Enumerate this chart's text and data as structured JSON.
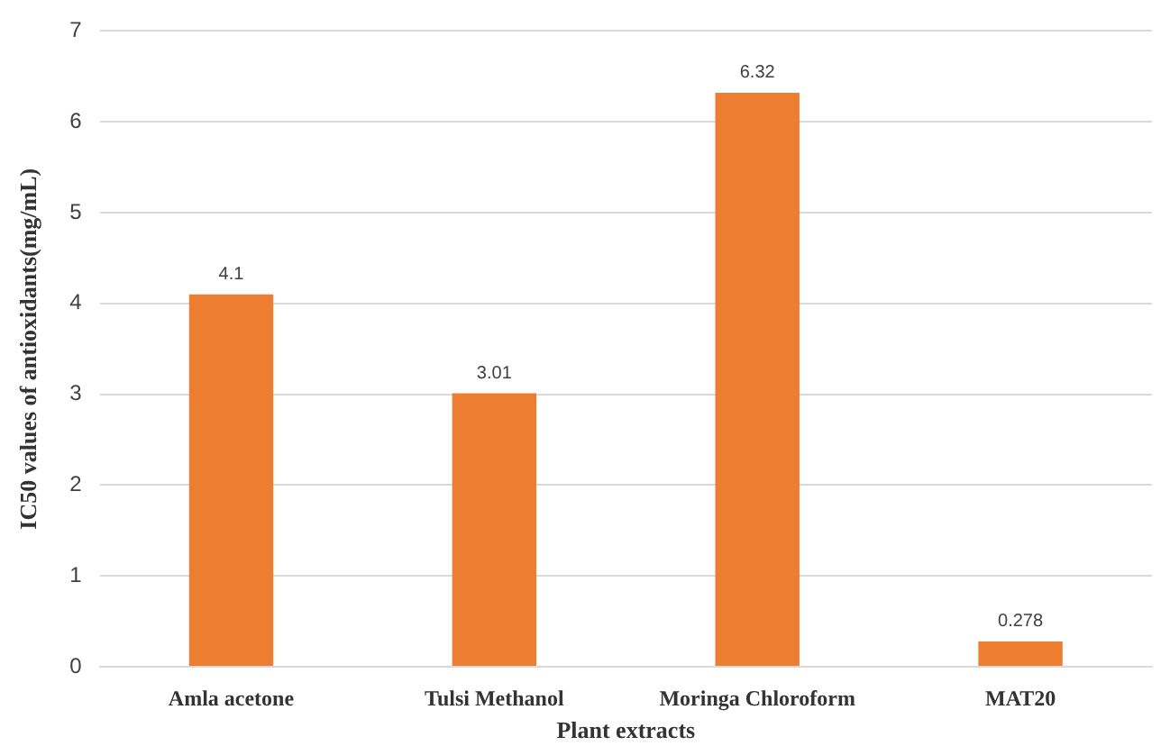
{
  "chart_data": {
    "type": "bar",
    "xlabel": "Plant extracts",
    "ylabel": "IC50 values of antioxidants(mg/mL)",
    "categories": [
      "Amla acetone",
      "Tulsi Methanol",
      "Moringa Chloroform",
      "MAT20"
    ],
    "values": [
      4.1,
      3.01,
      6.32,
      0.278
    ],
    "color": "#ed7d31",
    "ylim": [
      0,
      7
    ],
    "yticks": [
      0,
      1,
      2,
      3,
      4,
      5,
      6,
      7
    ],
    "grid": "y",
    "data_labels": true
  }
}
